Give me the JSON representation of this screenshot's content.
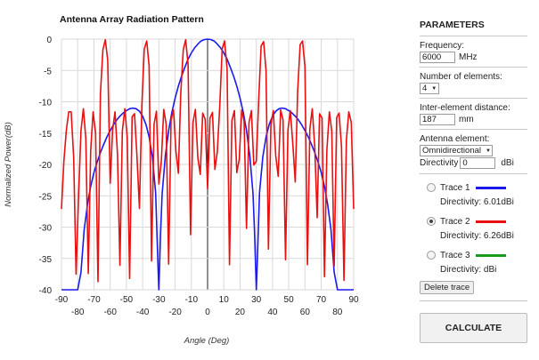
{
  "chart_data": {
    "type": "line",
    "title": "Antenna Array Radiation Pattern",
    "xlabel": "Angle (Deg)",
    "ylabel": "Normalized Power(dB)",
    "xlim": [
      -90,
      90
    ],
    "ylim": [
      -40,
      0
    ],
    "x_ticks_top": [
      "-90",
      "-70",
      "-50",
      "-30",
      "-10",
      "10",
      "30",
      "50",
      "70",
      "90"
    ],
    "x_ticks_bottom": [
      "-80",
      "-60",
      "-40",
      "-20",
      "0",
      "20",
      "40",
      "60",
      "80"
    ],
    "y_ticks": [
      "0",
      "-5",
      "-10",
      "-15",
      "-20",
      "-25",
      "-30",
      "-35",
      "-40"
    ],
    "grid": true,
    "series": [
      {
        "name": "Trace 1",
        "color": "#1a1aee",
        "x": [
          -90,
          -88,
          -86,
          -84,
          -82,
          -80,
          -78,
          -76,
          -74,
          -72,
          -70,
          -68,
          -66,
          -64,
          -62,
          -60,
          -58,
          -56,
          -54,
          -52,
          -50,
          -48,
          -46,
          -44,
          -42,
          -40,
          -38,
          -36,
          -34,
          -32,
          -30.5,
          -30,
          -29,
          -28,
          -26,
          -24,
          -22,
          -20,
          -18,
          -16,
          -14,
          -12,
          -10,
          -8,
          -6,
          -4,
          -2,
          0,
          2,
          4,
          6,
          8,
          10,
          12,
          14,
          16,
          18,
          20,
          22,
          24,
          26,
          28,
          29,
          30,
          30.5,
          32,
          34,
          36,
          38,
          40,
          42,
          44,
          46,
          48,
          50,
          52,
          54,
          56,
          58,
          60,
          62,
          64,
          66,
          68,
          70,
          72,
          74,
          76,
          78,
          80,
          82,
          84,
          86,
          88,
          90
        ],
        "values": [
          -40,
          -40,
          -40,
          -40,
          -40,
          -40,
          -37.2,
          -30.4,
          -26.4,
          -23.5,
          -21.3,
          -19.6,
          -18.1,
          -16.8,
          -15.6,
          -14.6,
          -13.7,
          -12.9,
          -12.3,
          -11.8,
          -11.4,
          -11.1,
          -11.0,
          -11.1,
          -11.5,
          -12.3,
          -13.6,
          -15.6,
          -18.8,
          -24.5,
          -36.4,
          -40,
          -31.1,
          -24.7,
          -18.6,
          -14.6,
          -11.7,
          -9.4,
          -7.5,
          -5.9,
          -4.5,
          -3.2,
          -2.2,
          -1.4,
          -0.8,
          -0.3,
          -0.07,
          0,
          -0.07,
          -0.3,
          -0.8,
          -1.4,
          -2.2,
          -3.2,
          -4.5,
          -5.9,
          -7.5,
          -9.4,
          -11.7,
          -14.6,
          -18.6,
          -24.7,
          -31.1,
          -40,
          -36.4,
          -24.5,
          -18.8,
          -15.6,
          -13.6,
          -12.3,
          -11.5,
          -11.1,
          -11.0,
          -11.1,
          -11.4,
          -11.8,
          -12.3,
          -12.9,
          -13.7,
          -14.6,
          -15.6,
          -16.8,
          -18.1,
          -19.6,
          -21.3,
          -23.5,
          -26.4,
          -30.4,
          -37.2,
          -40,
          -40,
          -40,
          -40,
          -40,
          -40
        ]
      },
      {
        "name": "Trace 2",
        "color": "#e81010",
        "x": [
          -90,
          -88.5,
          -87,
          -85.5,
          -84,
          -82.5,
          -81,
          -79.5,
          -78,
          -76.5,
          -75,
          -73.5,
          -72,
          -70.5,
          -69,
          -67.5,
          -66,
          -64.5,
          -63,
          -61.5,
          -60,
          -58.5,
          -57,
          -55.5,
          -54,
          -52.5,
          -51,
          -49.5,
          -48,
          -46.5,
          -45,
          -43.5,
          -42,
          -40.5,
          -39,
          -37.5,
          -36,
          -34.5,
          -33,
          -31.5,
          -30,
          -28.5,
          -27,
          -25.5,
          -24,
          -22.5,
          -21,
          -19.5,
          -18,
          -16.5,
          -15,
          -13.5,
          -12,
          -10.5,
          -9,
          -7.5,
          -6,
          -4.5,
          -3,
          -1.5,
          0,
          1.5,
          3,
          4.5,
          6,
          7.5,
          9,
          10.5,
          12,
          13.5,
          15,
          16.5,
          18,
          19.5,
          21,
          22.5,
          24,
          25.5,
          27,
          28.5,
          30,
          31.5,
          33,
          34.5,
          36,
          37.5,
          39,
          40.5,
          42,
          43.5,
          45,
          46.5,
          48,
          49.5,
          51,
          52.5,
          54,
          55.5,
          57,
          58.5,
          60,
          61.5,
          63,
          64.5,
          66,
          67.5,
          69,
          70.5,
          72,
          73.5,
          75,
          76.5,
          78,
          79.5,
          81,
          82.5,
          84,
          85.5,
          87,
          88.5,
          90
        ],
        "values": [
          -27.1,
          -19.5,
          -14.5,
          -11.6,
          -11.6,
          -18.9,
          -37.5,
          -25.4,
          -14.6,
          -11.1,
          -15.8,
          -37.4,
          -17.8,
          -11.6,
          -15.0,
          -38.7,
          -8.8,
          -1.7,
          -0.1,
          -3.3,
          -23.0,
          -14.5,
          -11.6,
          -18.4,
          -36.1,
          -14.7,
          -11.1,
          -15.6,
          -38.2,
          -12.4,
          -11.9,
          -18.6,
          -27.0,
          -10.7,
          -1.6,
          -0.3,
          -4.3,
          -35.4,
          -13.6,
          -11.5,
          -23.1,
          -19.5,
          -11.2,
          -13.6,
          -35.9,
          -12.9,
          -11.3,
          -17.9,
          -21.4,
          -8.7,
          -1.7,
          -0.1,
          -4.0,
          -31.2,
          -13.3,
          -11.2,
          -19.0,
          -21.6,
          -11.8,
          -12.8,
          -23.9,
          -12.6,
          -11.7,
          -20.8,
          -18.0,
          -10.6,
          -1.5,
          -0.3,
          -4.8,
          -36.0,
          -13.0,
          -11.4,
          -21.3,
          -19.2,
          -11.3,
          -13.1,
          -30.2,
          -13.3,
          -11.4,
          -20.1,
          -19.5,
          -9.6,
          -1.1,
          -0.4,
          -5.0,
          -33.5,
          -13.6,
          -11.4,
          -18.6,
          -21.9,
          -11.3,
          -12.9,
          -35.2,
          -14.5,
          -11.4,
          -16.8,
          -22.8,
          -8.3,
          -0.9,
          -0.3,
          -4.4,
          -36.0,
          -14.3,
          -11.1,
          -17.2,
          -28.5,
          -11.9,
          -12.6,
          -37.9,
          -17.7,
          -11.6,
          -14.7,
          -36.2,
          -12.5,
          -11.8,
          -17.1,
          -38.5,
          -16.1,
          -11.6,
          -13.3,
          -27.1
        ]
      }
    ]
  },
  "params": {
    "title": "PARAMETERS",
    "frequency_label": "Frequency:",
    "frequency_value": "6000",
    "frequency_unit": "MHz",
    "elements_label": "Number of elements:",
    "elements_value": "4",
    "distance_label": "Inter-element distance:",
    "distance_value": "187",
    "distance_unit": "mm",
    "antenna_label": "Antenna element:",
    "antenna_value": "Omnidirectional",
    "directivity_label": "Directivity",
    "directivity_value": "0",
    "directivity_unit": "dBi",
    "traces": [
      {
        "label": "Trace 1",
        "color": "#1a1aee",
        "directivity": "Directivity: 6.01dBi",
        "checked": false
      },
      {
        "label": "Trace 2",
        "color": "#e81010",
        "directivity": "Directivity: 6.26dBi",
        "checked": true
      },
      {
        "label": "Trace 3",
        "color": "#1a9a1a",
        "directivity": "Directivity: dBi",
        "checked": false
      }
    ],
    "delete_label": "Delete trace",
    "calculate_label": "CALCULATE"
  }
}
